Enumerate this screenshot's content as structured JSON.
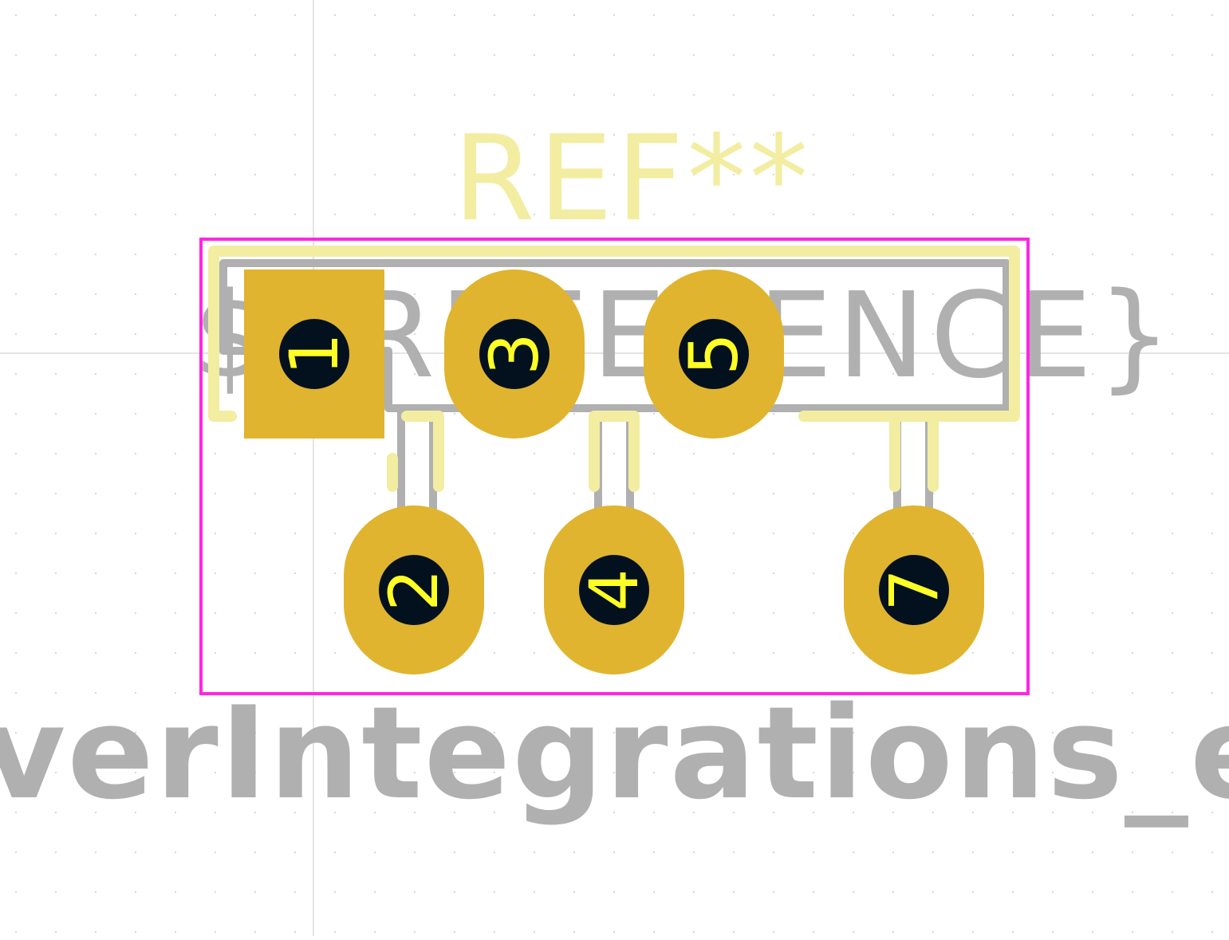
{
  "footprint": {
    "reference_text": "REF**",
    "reference_placeholder": "${REFERENCE}",
    "value_text": "verIntegrations_eSIP-",
    "colors": {
      "background": "#ffffff",
      "grid_dot": "#d7d7d7",
      "crosshair": "#c8c8c8",
      "courtyard": "#ff26e2",
      "silkscreen": "#f2eda1",
      "fab_outline": "#b0b0b0",
      "pad_copper": "#e0b42f",
      "drill_hole": "#03111f",
      "pad_number": "#ffff26"
    },
    "pads": [
      {
        "number": "1",
        "shape": "rect"
      },
      {
        "number": "2",
        "shape": "oval"
      },
      {
        "number": "3",
        "shape": "oval"
      },
      {
        "number": "4",
        "shape": "oval"
      },
      {
        "number": "5",
        "shape": "oval"
      },
      {
        "number": "7",
        "shape": "oval"
      }
    ]
  }
}
